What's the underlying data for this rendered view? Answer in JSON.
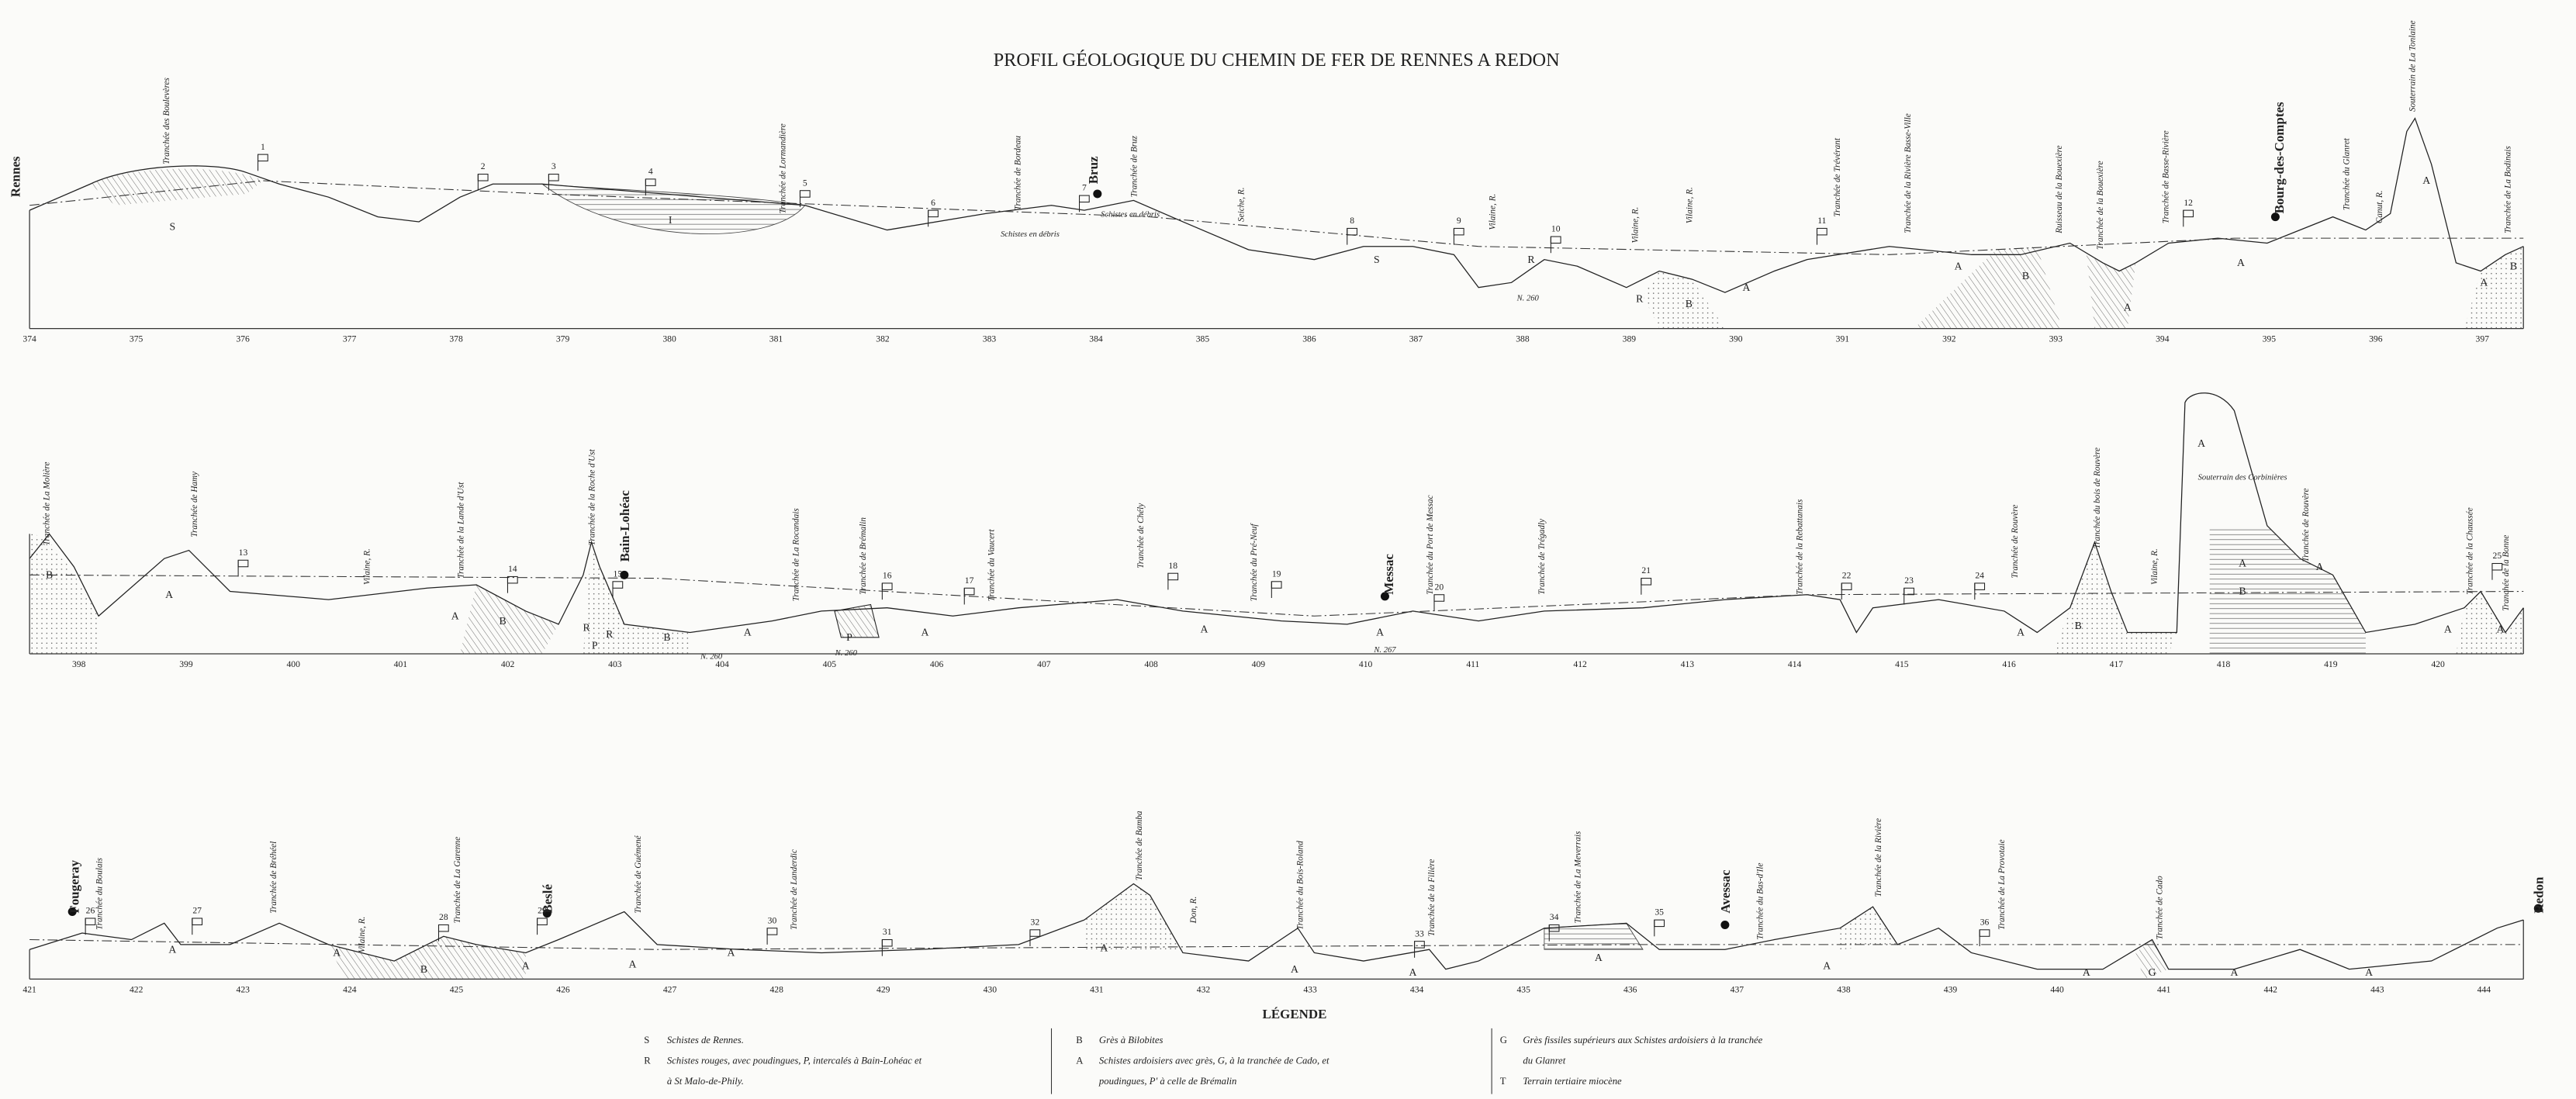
{
  "title": "PROFIL GÉOLOGIQUE DU CHEMIN DE FER DE RENNES A REDON",
  "strips": [
    {
      "kilometers": [
        374,
        375,
        376,
        377,
        378,
        379,
        380,
        381,
        382,
        383,
        384,
        385,
        386,
        387,
        388,
        389,
        390,
        391,
        392,
        393,
        394,
        395,
        396,
        397
      ],
      "labels": [
        "Rennes",
        "Tranchée des Boulevères",
        "Tranchée de Lormandière",
        "Tranchée de Bordeau",
        "Bruz",
        "Tranchée de Bruz",
        "Seiche, R.",
        "Vilaine, R.",
        "Vilaine, R.",
        "Vilaine, R.",
        "Tranchée de Trévérant",
        "Tranchée de la Rivière Basse-Ville",
        "Ruisseau de la Bouexière",
        "Tranchée de la Bouexière",
        "Tranchée de Basse-Rivière",
        "Bourg-des-Comptes",
        "Tranchée du Glanret",
        "Canut, R.",
        "Souterrain de La Tonlaine",
        "Tranchée de La Bodinais"
      ],
      "flags": [
        1,
        2,
        3,
        4,
        5,
        6,
        7,
        8,
        9,
        10,
        11,
        12
      ],
      "letters": [
        "S",
        "I",
        "S",
        "R",
        "R",
        "B",
        "A",
        "A",
        "B",
        "A",
        "A",
        "A",
        "A",
        "B"
      ],
      "notes": [
        "Schistes en débris",
        "Schistes en débris",
        "N. 260"
      ]
    },
    {
      "kilometers": [
        398,
        399,
        400,
        401,
        402,
        403,
        404,
        405,
        406,
        407,
        408,
        409,
        410,
        411,
        412,
        413,
        414,
        415,
        416,
        417,
        418,
        419,
        420
      ],
      "labels": [
        "Tranchée de La Molière",
        "Tranchée de Hamy",
        "Vilaine, R.",
        "Tranchée de la Lande d'Ust",
        "Tranchée de la Roche d'Ust",
        "Bain-Lohéac",
        "Tranchée de La Rocandais",
        "Tranchée de Brémalin",
        "Tranchée du Vaucert",
        "Tranchée de Chély",
        "Tranchée du Pré-Neuf",
        "Messac",
        "Tranchée du Port de Messac",
        "Tranchée de Trégadly",
        "Tranchée de la Rebattanais",
        "Tranchée de Rouvère",
        "Tranchée du bois de Rouvère",
        "Vilaine, R.",
        "Tranchée de Rouvère",
        "Tranchée de la Chaussée",
        "Tranchée de la Bonne"
      ],
      "flags": [
        13,
        14,
        15,
        16,
        17,
        18,
        19,
        20,
        21,
        22,
        23,
        24,
        25
      ],
      "letters": [
        "B",
        "A",
        "A",
        "B",
        "R",
        "R",
        "P",
        "B",
        "A",
        "P",
        "A",
        "A",
        "A",
        "A",
        "B",
        "A",
        "B",
        "A",
        "A",
        "A",
        "A"
      ],
      "notes": [
        "N. 260",
        "N. 260",
        "N. 267",
        "Souterrain des Corbinières"
      ]
    },
    {
      "kilometers": [
        421,
        422,
        423,
        424,
        425,
        426,
        427,
        428,
        429,
        430,
        431,
        432,
        433,
        434,
        435,
        436,
        437,
        438,
        439,
        440,
        441,
        442,
        443,
        444
      ],
      "labels": [
        "Fougeray",
        "Tranchée du Boulais",
        "Tranchée de Bréhéel",
        "Vilaine, R.",
        "Tranchée de La Garenne",
        "Beslé",
        "Tranchée de Guémené",
        "Tranchée de Landerdic",
        "Tranchée de Bamba",
        "Don, R.",
        "Tranchée du Bois-Roland",
        "Tranchée de la Filière",
        "Tranchée de La Meverrais",
        "Avessac",
        "Tranchée du Bas-d'Ile",
        "Tranchée de la Rivière",
        "Tranchée de La Provotaie",
        "Tranchée de Cado",
        "Redon"
      ],
      "flags": [
        26,
        27,
        28,
        29,
        30,
        31,
        32,
        33,
        34,
        35,
        36
      ],
      "letters": [
        "A",
        "A",
        "B",
        "A",
        "A",
        "A",
        "A",
        "A",
        "A",
        "A",
        "A",
        "A",
        "G",
        "A",
        "A"
      ]
    }
  ],
  "legend": {
    "title": "LÉGENDE",
    "columns": [
      [
        {
          "symbol": "S",
          "lines": [
            "Schistes de Rennes."
          ]
        },
        {
          "symbol": "R",
          "lines": [
            "Schistes rouges, avec poudingues, P, intercalés à Bain-Lohéac et",
            "à St Malo-de-Phily."
          ]
        }
      ],
      [
        {
          "symbol": "B",
          "lines": [
            "Grès à Bilobites"
          ]
        },
        {
          "symbol": "A",
          "lines": [
            "Schistes ardoisiers avec grès, G, à la tranchée de Cado, et",
            "poudingues, P' à celle de Brémalin"
          ]
        }
      ],
      [
        {
          "symbol": "G",
          "lines": [
            "Grès fissiles supérieurs aux Schistes ardoisiers à la tranchée",
            "du Glanret"
          ]
        },
        {
          "symbol": "T",
          "lines": [
            "Terrain tertiaire miocène"
          ]
        }
      ]
    ]
  }
}
